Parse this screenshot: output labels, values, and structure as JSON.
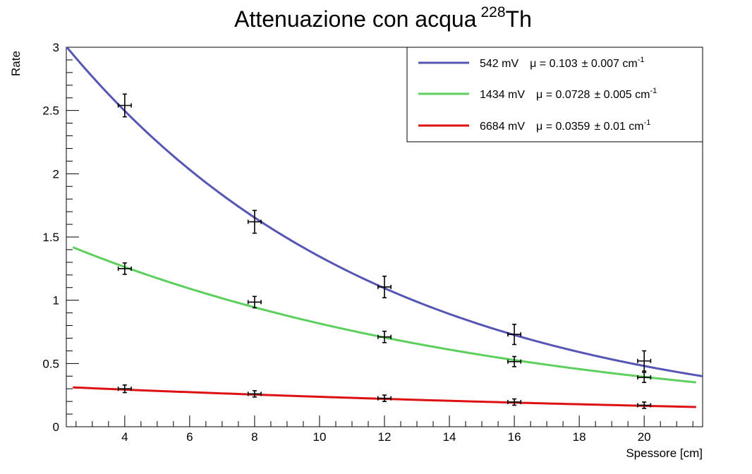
{
  "chart_data": {
    "type": "scatter",
    "title": "Attenuazione con acqua",
    "title_sup": "228",
    "title_suffix": "Th",
    "xlabel": "Spessore [cm]",
    "ylabel": "Rate",
    "xlim": [
      2.2,
      21.8
    ],
    "ylim": [
      0,
      3
    ],
    "x_ticks": [
      4,
      6,
      8,
      10,
      12,
      14,
      16,
      18,
      20
    ],
    "y_ticks": [
      0,
      0.5,
      1,
      1.5,
      2,
      2.5,
      3
    ],
    "y_tick_labels": [
      "0",
      "0.5",
      "1",
      "1.5",
      "2",
      "2.5",
      "3"
    ],
    "grid": false,
    "legend_position": "top-right",
    "series": [
      {
        "name": "542 mV",
        "legend_mu": "μ = 0.103",
        "legend_err": "± 0.007 cm",
        "legend_unit_exp": "-1",
        "color": "#5555b5",
        "fit": {
          "A": 3.77,
          "mu": 0.103,
          "x_range": [
            2.2,
            21.8
          ]
        },
        "x": [
          4,
          8,
          12,
          16,
          20
        ],
        "y": [
          2.54,
          1.62,
          1.105,
          0.73,
          0.52
        ],
        "xerr": 0.2,
        "yerr": [
          0.09,
          0.09,
          0.085,
          0.08,
          0.08
        ]
      },
      {
        "name": "1434 mV",
        "legend_mu": "μ = 0.0728",
        "legend_err": "± 0.005 cm",
        "legend_unit_exp": "-1",
        "color": "#5ccf5c",
        "fit": {
          "A": 1.69,
          "mu": 0.0728,
          "x_range": [
            2.4,
            21.6
          ]
        },
        "x": [
          4,
          8,
          12,
          16,
          20
        ],
        "y": [
          1.25,
          0.985,
          0.71,
          0.515,
          0.39
        ],
        "xerr": 0.2,
        "yerr": [
          0.045,
          0.045,
          0.045,
          0.04,
          0.04
        ]
      },
      {
        "name": "6684 mV",
        "legend_mu": "μ = 0.0359",
        "legend_err": "± 0.01 cm",
        "legend_unit_exp": "-1",
        "color": "#dd1111",
        "fit": {
          "A": 0.339,
          "mu": 0.0359,
          "x_range": [
            2.4,
            21.6
          ]
        },
        "x": [
          4,
          8,
          12,
          16,
          20
        ],
        "y": [
          0.3,
          0.26,
          0.225,
          0.195,
          0.17
        ],
        "xerr": 0.2,
        "yerr": [
          0.03,
          0.025,
          0.025,
          0.025,
          0.025
        ]
      }
    ]
  }
}
